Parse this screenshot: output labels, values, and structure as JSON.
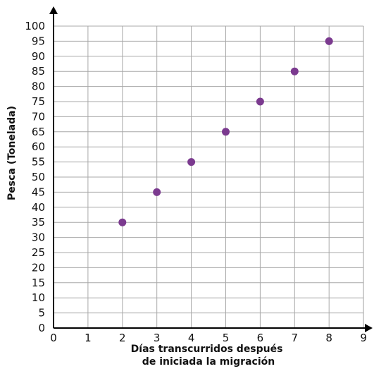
{
  "chart_data": {
    "type": "scatter",
    "xlabel": [
      "Días transcurridos después",
      "de iniciada la migración"
    ],
    "ylabel": "Pesca (Tonelada)",
    "xlim": [
      0,
      9
    ],
    "ylim": [
      0,
      100
    ],
    "x_ticks": [
      "0",
      "1",
      "2",
      "3",
      "4",
      "5",
      "6",
      "7",
      "8",
      "9"
    ],
    "y_ticks": [
      "0",
      "5",
      "10",
      "15",
      "20",
      "25",
      "30",
      "35",
      "40",
      "45",
      "50",
      "55",
      "60",
      "65",
      "70",
      "75",
      "80",
      "85",
      "90",
      "95",
      "100"
    ],
    "grid": true,
    "point_color": "#7b3a8f",
    "points": [
      {
        "x": 2,
        "y": 35
      },
      {
        "x": 3,
        "y": 45
      },
      {
        "x": 4,
        "y": 55
      },
      {
        "x": 5,
        "y": 65
      },
      {
        "x": 6,
        "y": 75
      },
      {
        "x": 7,
        "y": 85
      },
      {
        "x": 8,
        "y": 95
      }
    ]
  }
}
